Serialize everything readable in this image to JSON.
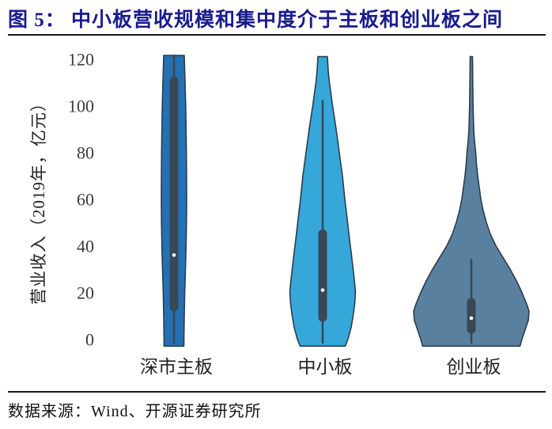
{
  "title": {
    "text": "图 5： 中小板营收规模和集中度介于主板和创业板之间"
  },
  "source": {
    "text": "数据来源：Wind、开源证券研究所"
  },
  "colors": {
    "title": "#1b1b8e",
    "rule": "#14142b",
    "violin_stroke": "#2d3c4c",
    "box": "#3a4754",
    "median_dot": "#ffffff",
    "tick_text": "#3a3a3a"
  },
  "chart_data": {
    "type": "violin",
    "title": "",
    "ylabel": "营业收入（2019年，亿元）",
    "xlabel": "",
    "ylim": [
      0,
      120
    ],
    "yticks": [
      0,
      20,
      40,
      60,
      80,
      100,
      120
    ],
    "grid": false,
    "legend": "none",
    "categories": [
      "深市主板",
      "中小板",
      "创业板"
    ],
    "series": [
      {
        "name": "深市主板",
        "color": "#2470b4",
        "stats": {
          "median": 36,
          "q1": 12,
          "q3": 112.5,
          "whisker_low": -1.5,
          "whisker_high": 121.5
        },
        "profile": [
          [
            121.5,
            13
          ],
          [
            110,
            14
          ],
          [
            100,
            14.8
          ],
          [
            90,
            15.3
          ],
          [
            80,
            15.7
          ],
          [
            70,
            15.9
          ],
          [
            60,
            16
          ],
          [
            50,
            15.8
          ],
          [
            40,
            15.3
          ],
          [
            30,
            14.5
          ],
          [
            20,
            13.6
          ],
          [
            10,
            13
          ],
          [
            0,
            12.6
          ],
          [
            -3,
            12.5
          ]
        ]
      },
      {
        "name": "中小板",
        "color": "#36a7d9",
        "stats": {
          "median": 21,
          "q1": 7.5,
          "q3": 47,
          "whisker_low": -1.5,
          "whisker_high": 102
        },
        "profile": [
          [
            121,
            6
          ],
          [
            115,
            7
          ],
          [
            110,
            8.5
          ],
          [
            105,
            10.5
          ],
          [
            100,
            12.5
          ],
          [
            95,
            14.8
          ],
          [
            90,
            17
          ],
          [
            85,
            19
          ],
          [
            80,
            21
          ],
          [
            75,
            23
          ],
          [
            70,
            25
          ],
          [
            65,
            26.5
          ],
          [
            60,
            28
          ],
          [
            55,
            29.8
          ],
          [
            50,
            31.5
          ],
          [
            45,
            33.2
          ],
          [
            40,
            35
          ],
          [
            35,
            36.8
          ],
          [
            30,
            38.5
          ],
          [
            25,
            40.2
          ],
          [
            20,
            41.5
          ],
          [
            15,
            40.5
          ],
          [
            10,
            38.5
          ],
          [
            5,
            36
          ],
          [
            0,
            32
          ],
          [
            -3,
            28.5
          ]
        ]
      },
      {
        "name": "创业板",
        "color": "#59809f",
        "stats": {
          "median": 9,
          "q1": 2.4,
          "q3": 17.6,
          "whisker_low": -1.5,
          "whisker_high": 34
        },
        "profile": [
          [
            121,
            1.5
          ],
          [
            110,
            1.8
          ],
          [
            100,
            2.2
          ],
          [
            90,
            3
          ],
          [
            85,
            4
          ],
          [
            80,
            5.5
          ],
          [
            75,
            6.5
          ],
          [
            70,
            8
          ],
          [
            65,
            10
          ],
          [
            60,
            12
          ],
          [
            55,
            15
          ],
          [
            50,
            19
          ],
          [
            45,
            24
          ],
          [
            40,
            31
          ],
          [
            35,
            40
          ],
          [
            30,
            49
          ],
          [
            25,
            57
          ],
          [
            20,
            64
          ],
          [
            15,
            70
          ],
          [
            12,
            73
          ],
          [
            8,
            72
          ],
          [
            5,
            69
          ],
          [
            0,
            64
          ],
          [
            -3,
            61.5
          ]
        ]
      }
    ]
  }
}
